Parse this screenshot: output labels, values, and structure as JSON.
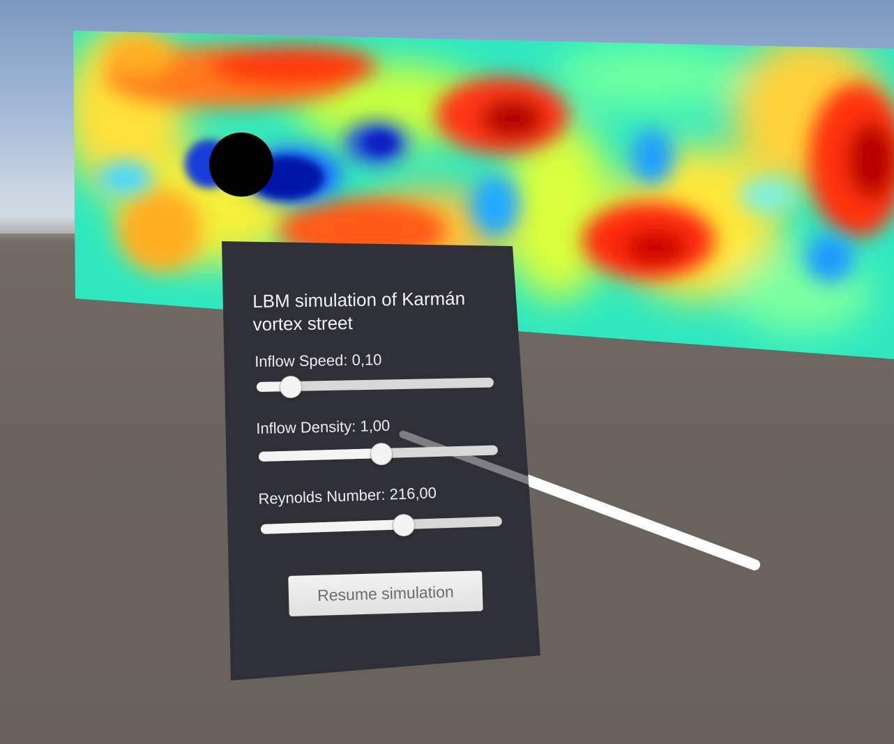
{
  "panel": {
    "title": "LBM simulation of Karmán vortex street",
    "sliders": [
      {
        "label": "Inflow Speed: 0,10",
        "value_fraction": 0.14
      },
      {
        "label": "Inflow Density: 1,00",
        "value_fraction": 0.51
      },
      {
        "label": "Reynolds Number: 216,00",
        "value_fraction": 0.59
      }
    ],
    "button_label": "Resume simulation"
  },
  "colors": {
    "panel_bg": "#2f2f37",
    "ground": "#6b645e",
    "sky": "#8aa6c8",
    "pointer_ray": "#ffffff"
  },
  "icons": {
    "obstacle": "cylinder-obstacle",
    "pointer": "vr-pointer-ray"
  }
}
